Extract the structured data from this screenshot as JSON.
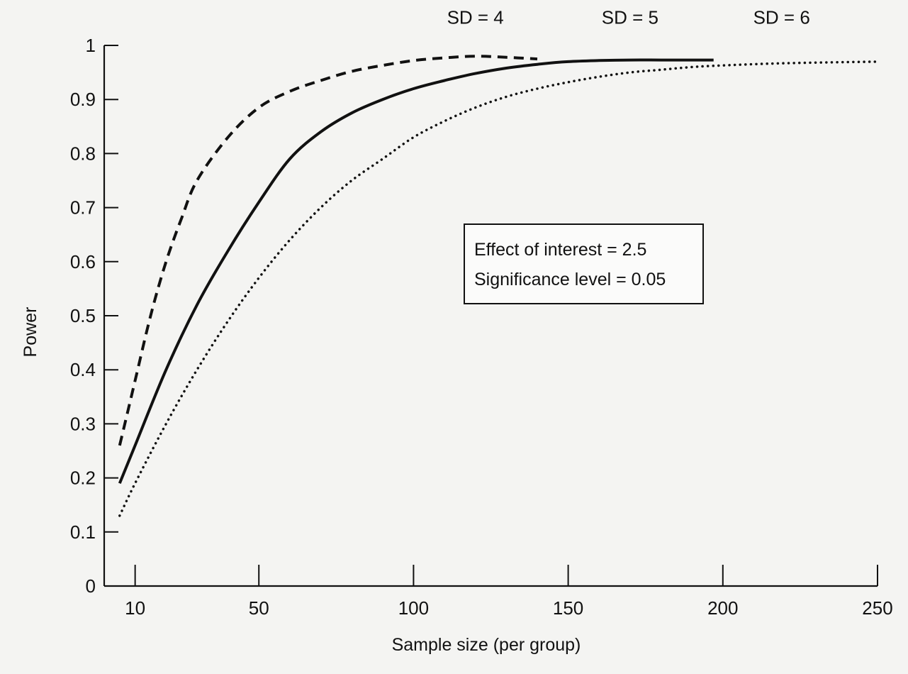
{
  "chart_data": {
    "type": "line",
    "title": "",
    "xlabel": "Sample size (per group)",
    "ylabel": "Power",
    "xlim": [
      0,
      250
    ],
    "ylim": [
      0,
      1
    ],
    "x_ticks": [
      10,
      50,
      100,
      150,
      200,
      250
    ],
    "x_tick_labels": [
      "10",
      "50",
      "100",
      "150",
      "200",
      "250"
    ],
    "y_ticks": [
      0,
      0.1,
      0.2,
      0.3,
      0.4,
      0.5,
      0.6,
      0.7,
      0.8,
      0.9,
      1
    ],
    "y_tick_labels": [
      "0",
      "0.1",
      "0.2",
      "0.3",
      "0.4",
      "0.5",
      "0.6",
      "0.7",
      "0.8",
      "0.9",
      "1"
    ],
    "grid": false,
    "legend": "none",
    "annotation": {
      "lines": [
        "Effect of interest = 2.5",
        "Significance level = 0.05"
      ],
      "placement": "center-right, boxed"
    },
    "series": [
      {
        "name": "SD = 4",
        "style": "dashed",
        "color": "#111111",
        "x": [
          5,
          10,
          15,
          20,
          25,
          30,
          40,
          50,
          60,
          70,
          80,
          90,
          100,
          110,
          120,
          130,
          140
        ],
        "y": [
          0.26,
          0.38,
          0.5,
          0.6,
          0.68,
          0.75,
          0.83,
          0.885,
          0.915,
          0.935,
          0.952,
          0.963,
          0.972,
          0.977,
          0.98,
          0.978,
          0.975
        ]
      },
      {
        "name": "SD = 5",
        "style": "solid",
        "color": "#111111",
        "x": [
          5,
          10,
          20,
          30,
          40,
          50,
          60,
          70,
          80,
          90,
          100,
          110,
          120,
          130,
          140,
          150,
          160,
          170,
          180,
          190,
          197
        ],
        "y": [
          0.19,
          0.26,
          0.4,
          0.52,
          0.62,
          0.71,
          0.79,
          0.84,
          0.875,
          0.9,
          0.92,
          0.935,
          0.948,
          0.958,
          0.965,
          0.97,
          0.972,
          0.973,
          0.973,
          0.973,
          0.973
        ]
      },
      {
        "name": "SD = 6",
        "style": "dotted",
        "color": "#111111",
        "x": [
          5,
          10,
          20,
          30,
          40,
          50,
          60,
          70,
          80,
          90,
          100,
          110,
          120,
          130,
          140,
          150,
          160,
          170,
          180,
          190,
          200,
          220,
          250
        ],
        "y": [
          0.13,
          0.19,
          0.3,
          0.4,
          0.49,
          0.57,
          0.64,
          0.7,
          0.75,
          0.79,
          0.83,
          0.86,
          0.885,
          0.905,
          0.92,
          0.932,
          0.942,
          0.95,
          0.955,
          0.96,
          0.963,
          0.967,
          0.97
        ]
      }
    ],
    "curve_labels": [
      {
        "text": "SD = 4",
        "x": 120,
        "y": 1.04
      },
      {
        "text": "SD = 5",
        "x": 170,
        "y": 1.04
      },
      {
        "text": "SD = 6",
        "x": 219,
        "y": 1.04
      }
    ]
  }
}
